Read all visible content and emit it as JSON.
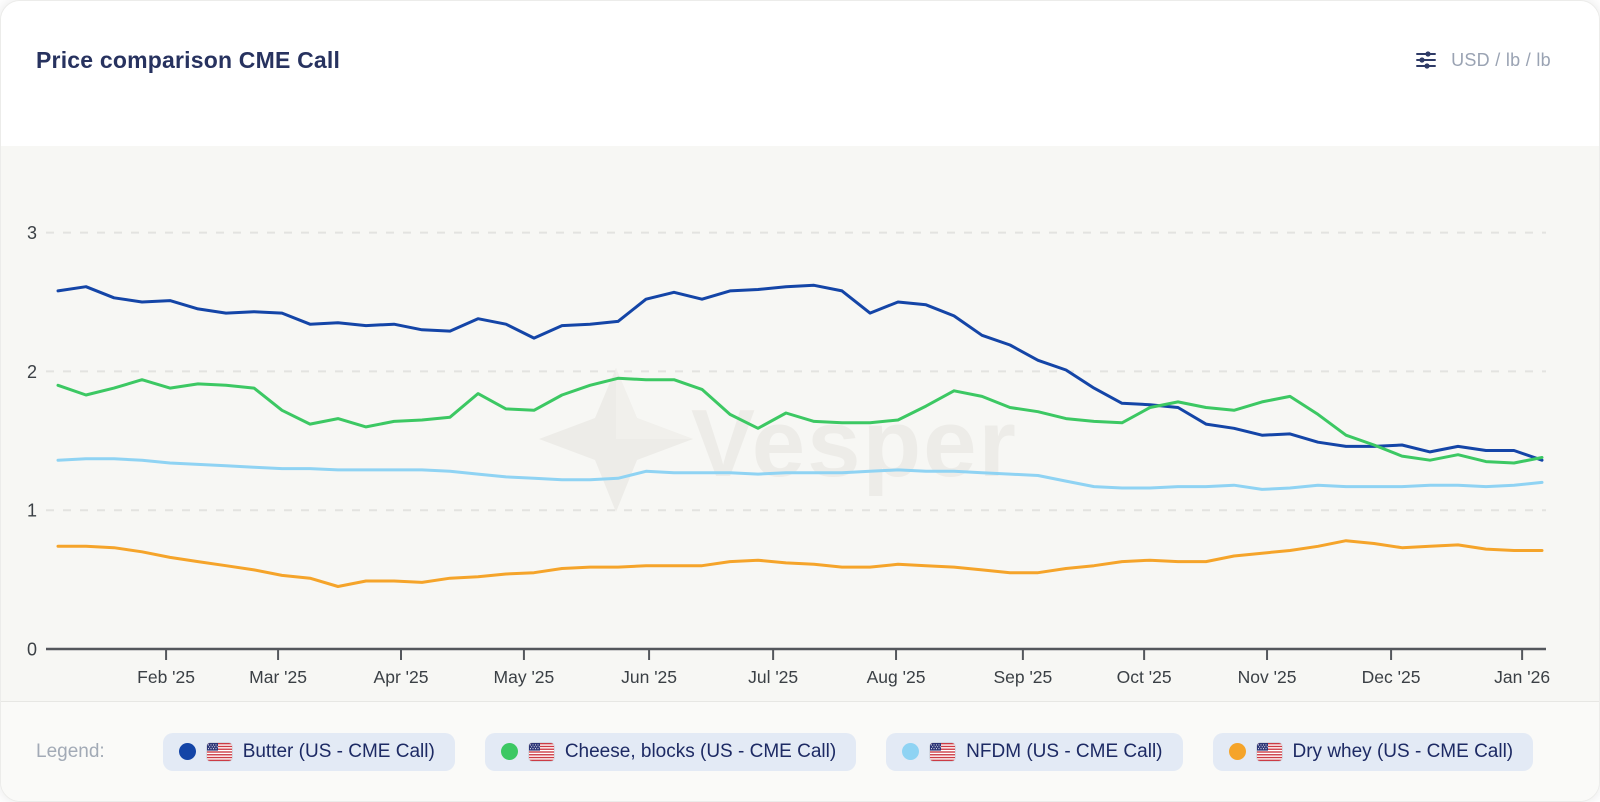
{
  "header": {
    "title": "Price comparison CME Call",
    "unit_selector": {
      "label": "USD / lb / lb",
      "icon": "sliders-icon"
    }
  },
  "watermark": "Vesper",
  "legend": {
    "label": "Legend:",
    "items": [
      {
        "label": "Butter (US - CME Call)",
        "color": "#1445a7",
        "flag": "US"
      },
      {
        "label": "Cheese, blocks (US - CME Call)",
        "color": "#3cc863",
        "flag": "US"
      },
      {
        "label": "NFDM (US - CME Call)",
        "color": "#8fd3f3",
        "flag": "US"
      },
      {
        "label": "Dry whey (US - CME Call)",
        "color": "#f5a42a",
        "flag": "US"
      }
    ]
  },
  "chart_data": {
    "type": "line",
    "title": "Price comparison CME Call",
    "unit": "USD / lb / lb",
    "x_unit": "weeks since 2025-01-06 (one point per week)",
    "x_count": 54,
    "x_ticks": [
      {
        "label": "Feb '25",
        "x": 3.86
      },
      {
        "label": "Mar '25",
        "x": 7.86
      },
      {
        "label": "Apr '25",
        "x": 12.25
      },
      {
        "label": "May '25",
        "x": 16.64
      },
      {
        "label": "Jun '25",
        "x": 21.11
      },
      {
        "label": "Jul '25",
        "x": 25.54
      },
      {
        "label": "Aug '25",
        "x": 29.93
      },
      {
        "label": "Sep '25",
        "x": 34.46
      },
      {
        "label": "Oct '25",
        "x": 38.79
      },
      {
        "label": "Nov '25",
        "x": 43.18
      },
      {
        "label": "Dec '25",
        "x": 47.61
      },
      {
        "label": "Jan '26",
        "x": 52.29
      }
    ],
    "y_ticks": [
      0,
      1,
      2,
      3
    ],
    "ylim": [
      0,
      3.4
    ],
    "grid": "horizontal-dashed",
    "legend_position": "bottom",
    "series": [
      {
        "name": "Butter (US - CME Call)",
        "color": "#1445a7",
        "values": [
          2.58,
          2.61,
          2.53,
          2.5,
          2.51,
          2.45,
          2.42,
          2.43,
          2.42,
          2.34,
          2.35,
          2.33,
          2.34,
          2.3,
          2.29,
          2.38,
          2.34,
          2.24,
          2.33,
          2.34,
          2.36,
          2.52,
          2.57,
          2.52,
          2.58,
          2.59,
          2.61,
          2.62,
          2.58,
          2.42,
          2.5,
          2.48,
          2.4,
          2.26,
          2.19,
          2.08,
          2.01,
          1.88,
          1.77,
          1.76,
          1.74,
          1.62,
          1.59,
          1.54,
          1.55,
          1.49,
          1.46,
          1.46,
          1.47,
          1.42,
          1.46,
          1.43,
          1.43,
          1.36
        ]
      },
      {
        "name": "Cheese, blocks (US - CME Call)",
        "color": "#3cc863",
        "values": [
          1.9,
          1.83,
          1.88,
          1.94,
          1.88,
          1.91,
          1.9,
          1.88,
          1.72,
          1.62,
          1.66,
          1.6,
          1.64,
          1.65,
          1.67,
          1.84,
          1.73,
          1.72,
          1.83,
          1.9,
          1.95,
          1.94,
          1.94,
          1.87,
          1.69,
          1.59,
          1.7,
          1.64,
          1.63,
          1.63,
          1.65,
          1.75,
          1.86,
          1.82,
          1.74,
          1.71,
          1.66,
          1.64,
          1.63,
          1.74,
          1.78,
          1.74,
          1.72,
          1.78,
          1.82,
          1.69,
          1.54,
          1.47,
          1.39,
          1.36,
          1.4,
          1.35,
          1.34,
          1.38
        ]
      },
      {
        "name": "NFDM (US - CME Call)",
        "color": "#8fd3f3",
        "values": [
          1.36,
          1.37,
          1.37,
          1.36,
          1.34,
          1.33,
          1.32,
          1.31,
          1.3,
          1.3,
          1.29,
          1.29,
          1.29,
          1.29,
          1.28,
          1.26,
          1.24,
          1.23,
          1.22,
          1.22,
          1.23,
          1.28,
          1.27,
          1.27,
          1.27,
          1.26,
          1.27,
          1.27,
          1.27,
          1.28,
          1.29,
          1.28,
          1.28,
          1.27,
          1.26,
          1.25,
          1.21,
          1.17,
          1.16,
          1.16,
          1.17,
          1.17,
          1.18,
          1.15,
          1.16,
          1.18,
          1.17,
          1.17,
          1.17,
          1.18,
          1.18,
          1.17,
          1.18,
          1.2
        ]
      },
      {
        "name": "Dry whey (US - CME Call)",
        "color": "#f5a42a",
        "values": [
          0.74,
          0.74,
          0.73,
          0.7,
          0.66,
          0.63,
          0.6,
          0.57,
          0.53,
          0.51,
          0.45,
          0.49,
          0.49,
          0.48,
          0.51,
          0.52,
          0.54,
          0.55,
          0.58,
          0.59,
          0.59,
          0.6,
          0.6,
          0.6,
          0.63,
          0.64,
          0.62,
          0.61,
          0.59,
          0.59,
          0.61,
          0.6,
          0.59,
          0.57,
          0.55,
          0.55,
          0.58,
          0.6,
          0.63,
          0.64,
          0.63,
          0.63,
          0.67,
          0.69,
          0.71,
          0.74,
          0.78,
          0.76,
          0.73,
          0.74,
          0.75,
          0.72,
          0.71,
          0.71
        ]
      }
    ]
  }
}
